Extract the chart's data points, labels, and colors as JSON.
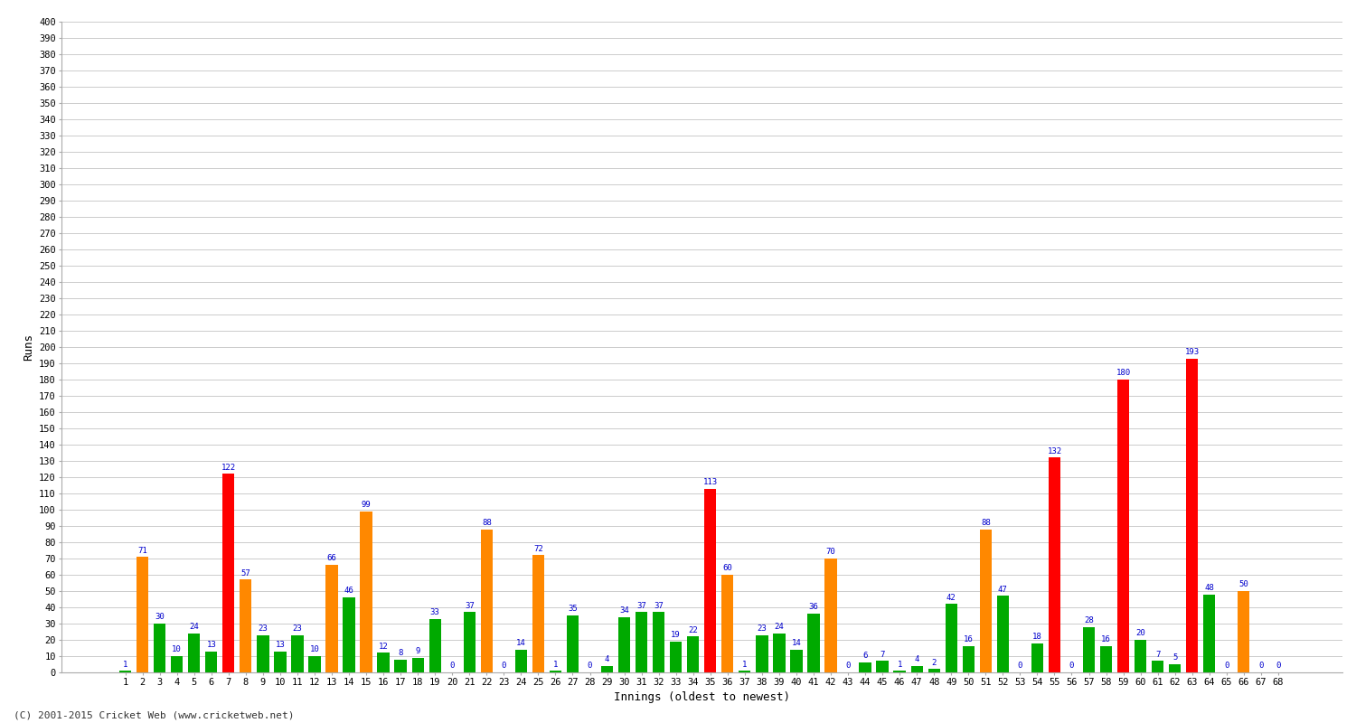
{
  "innings": [
    1,
    2,
    3,
    4,
    5,
    6,
    7,
    8,
    9,
    10,
    11,
    12,
    13,
    14,
    15,
    16,
    17,
    18,
    19,
    20,
    21,
    22,
    23,
    24,
    25,
    26,
    27,
    28,
    29,
    30,
    31,
    32,
    33,
    34,
    35,
    36,
    37,
    38,
    39,
    40,
    41,
    42,
    43,
    44,
    45,
    46,
    47,
    48,
    49,
    50,
    51,
    52,
    53,
    54,
    55,
    56,
    57,
    58,
    59,
    60,
    61,
    62,
    63,
    64,
    65,
    66,
    67,
    68
  ],
  "scores": [
    1,
    71,
    30,
    10,
    24,
    13,
    122,
    57,
    23,
    13,
    23,
    10,
    66,
    46,
    99,
    12,
    8,
    9,
    33,
    0,
    37,
    88,
    0,
    14,
    72,
    1,
    35,
    0,
    4,
    34,
    37,
    37,
    19,
    22,
    113,
    60,
    1,
    23,
    24,
    14,
    36,
    70,
    0,
    6,
    7,
    1,
    4,
    2,
    42,
    16,
    88,
    47,
    0,
    18,
    132,
    0,
    28,
    16,
    180,
    20,
    7,
    5,
    193,
    48,
    0,
    50,
    0,
    0
  ],
  "colors": [
    "#00aa00",
    "#ff8800",
    "#00aa00",
    "#00aa00",
    "#00aa00",
    "#00aa00",
    "#ff0000",
    "#ff8800",
    "#00aa00",
    "#00aa00",
    "#00aa00",
    "#00aa00",
    "#ff8800",
    "#00aa00",
    "#ff8800",
    "#00aa00",
    "#00aa00",
    "#00aa00",
    "#00aa00",
    "#00aa00",
    "#00aa00",
    "#ff8800",
    "#00aa00",
    "#00aa00",
    "#ff8800",
    "#00aa00",
    "#00aa00",
    "#00aa00",
    "#00aa00",
    "#00aa00",
    "#00aa00",
    "#00aa00",
    "#00aa00",
    "#00aa00",
    "#ff0000",
    "#ff8800",
    "#00aa00",
    "#00aa00",
    "#00aa00",
    "#00aa00",
    "#00aa00",
    "#ff8800",
    "#00aa00",
    "#00aa00",
    "#00aa00",
    "#00aa00",
    "#00aa00",
    "#00aa00",
    "#00aa00",
    "#00aa00",
    "#ff8800",
    "#00aa00",
    "#00aa00",
    "#00aa00",
    "#ff0000",
    "#00aa00",
    "#00aa00",
    "#00aa00",
    "#ff0000",
    "#00aa00",
    "#00aa00",
    "#00aa00",
    "#ff0000",
    "#00aa00",
    "#00aa00",
    "#ff8800",
    "#00aa00",
    "#00aa00"
  ],
  "ylabel": "Runs",
  "xlabel": "Innings (oldest to newest)",
  "ylim": [
    0,
    400
  ],
  "yticks": [
    0,
    10,
    20,
    30,
    40,
    50,
    60,
    70,
    80,
    90,
    100,
    110,
    120,
    130,
    140,
    150,
    160,
    170,
    180,
    190,
    200,
    210,
    220,
    230,
    240,
    250,
    260,
    270,
    280,
    290,
    300,
    310,
    320,
    330,
    340,
    350,
    360,
    370,
    380,
    390,
    400
  ],
  "footer": "(C) 2001-2015 Cricket Web (www.cricketweb.net)",
  "bg_color": "#ffffff",
  "grid_color": "#cccccc",
  "label_color": "#0000cc",
  "bar_width": 0.7
}
